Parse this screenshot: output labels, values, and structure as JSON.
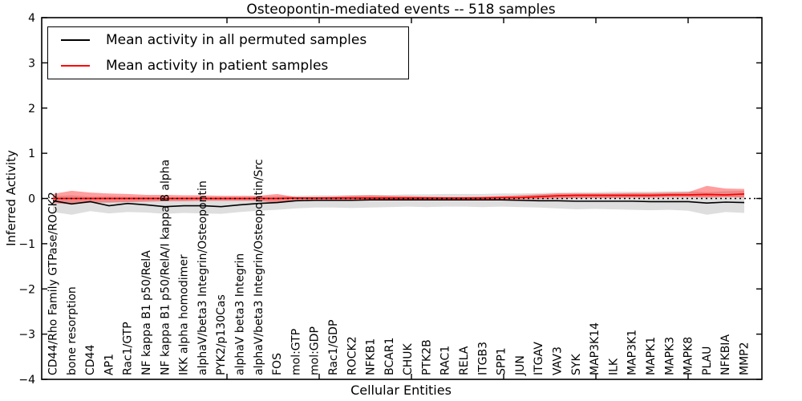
{
  "legend": {
    "position": "upper left",
    "items": [
      {
        "label": "Mean activity in all permuted samples",
        "color": "#000000"
      },
      {
        "label": "Mean activity in patient samples",
        "color": "#ff0000"
      }
    ]
  },
  "colors": {
    "background": "#ffffff",
    "axis": "#000000",
    "permuted_line": "#000000",
    "patient_line": "#ff0000",
    "permuted_band": "rgba(0,0,0,0.13)",
    "patient_band": "rgba(255,0,0,0.38)",
    "zero_line": "#000000"
  },
  "chart_data": {
    "type": "line",
    "title": "Osteopontin-mediated events -- 518 samples",
    "xlabel": "Cellular Entities",
    "ylabel": "Inferred Activity",
    "ylim": [
      -4,
      4
    ],
    "yticks": [
      4,
      3,
      2,
      1,
      0,
      -1,
      -2,
      -3,
      -4
    ],
    "ytick_labels": [
      "4",
      "3",
      "2",
      "1",
      "0",
      "−1",
      "−2",
      "−3",
      "−4"
    ],
    "grid": false,
    "x_tick_labels_rotation": 90,
    "categories": [
      "CD44/Rho Family GTPase/ROCK2",
      "bone resorption",
      "CD44",
      "AP1",
      "Rac1/GTP",
      "NF kappa B1 p50/RelA",
      "NF kappa B1 p50/RelA/I kappa B alpha",
      "IKK alpha homodimer",
      "alphaV/beta3 Integrin/Osteopontin",
      "PYK2/p130Cas",
      "alphaV beta3 Integrin",
      "alphaV/beta3 Integrin/Osteopontin/Src",
      "FOS",
      "mol:GTP",
      "mol:GDP",
      "Rac1/GDP",
      "ROCK2",
      "NFKB1",
      "BCAR1",
      "CHUK",
      "PTK2B",
      "RAC1",
      "RELA",
      "ITGB3",
      "SPP1",
      "JUN",
      "ITGAV",
      "VAV3",
      "SYK",
      "MAP3K14",
      "ILK",
      "MAP3K1",
      "MAPK1",
      "MAPK3",
      "MAPK8",
      "PLAU",
      "NFKBIA",
      "MMP2"
    ],
    "series": [
      {
        "name": "Mean activity in all permuted samples",
        "color": "#000000",
        "values": [
          -0.05,
          -0.12,
          -0.07,
          -0.16,
          -0.11,
          -0.14,
          -0.18,
          -0.16,
          -0.16,
          -0.18,
          -0.14,
          -0.11,
          -0.09,
          -0.05,
          -0.04,
          -0.04,
          -0.04,
          -0.03,
          -0.03,
          -0.03,
          -0.03,
          -0.03,
          -0.03,
          -0.03,
          -0.03,
          -0.04,
          -0.05,
          -0.05,
          -0.06,
          -0.06,
          -0.06,
          -0.06,
          -0.07,
          -0.07,
          -0.07,
          -0.1,
          -0.08,
          -0.09
        ]
      },
      {
        "name": "Mean activity in patient samples",
        "color": "#ff0000",
        "values": [
          0.0,
          0.0,
          0.0,
          0.0,
          0.0,
          0.0,
          0.0,
          0.0,
          0.0,
          0.0,
          0.0,
          0.0,
          0.0,
          0.01,
          0.01,
          0.01,
          0.01,
          0.01,
          0.01,
          0.01,
          0.01,
          0.01,
          0.01,
          0.01,
          0.02,
          0.02,
          0.04,
          0.06,
          0.07,
          0.07,
          0.07,
          0.07,
          0.07,
          0.08,
          0.08,
          0.09,
          0.08,
          0.1
        ]
      }
    ],
    "bands": [
      {
        "name": "permuted-band",
        "series": "Mean activity in all permuted samples",
        "color": "rgba(0,0,0,0.13)",
        "upper": [
          0.05,
          0.07,
          0.04,
          0.05,
          0.04,
          0.04,
          0.03,
          0.03,
          0.03,
          0.03,
          0.03,
          0.04,
          0.05,
          0.06,
          0.07,
          0.07,
          0.08,
          0.08,
          0.08,
          0.09,
          0.09,
          0.1,
          0.1,
          0.1,
          0.11,
          0.11,
          0.12,
          0.13,
          0.14,
          0.14,
          0.15,
          0.15,
          0.15,
          0.16,
          0.16,
          0.14,
          0.16,
          0.17
        ],
        "lower": [
          -0.3,
          -0.36,
          -0.28,
          -0.33,
          -0.3,
          -0.31,
          -0.34,
          -0.32,
          -0.33,
          -0.34,
          -0.3,
          -0.27,
          -0.25,
          -0.22,
          -0.2,
          -0.2,
          -0.21,
          -0.2,
          -0.19,
          -0.18,
          -0.19,
          -0.18,
          -0.18,
          -0.19,
          -0.18,
          -0.19,
          -0.2,
          -0.22,
          -0.24,
          -0.23,
          -0.24,
          -0.25,
          -0.26,
          -0.25,
          -0.27,
          -0.36,
          -0.3,
          -0.32
        ]
      },
      {
        "name": "patient-band",
        "series": "Mean activity in patient samples",
        "color": "rgba(255,0,0,0.38)",
        "upper": [
          0.1,
          0.17,
          0.13,
          0.11,
          0.1,
          0.08,
          0.08,
          0.07,
          0.07,
          0.06,
          0.06,
          0.06,
          0.1,
          0.03,
          0.03,
          0.04,
          0.06,
          0.07,
          0.06,
          0.05,
          0.04,
          0.03,
          0.03,
          0.04,
          0.05,
          0.07,
          0.09,
          0.11,
          0.11,
          0.11,
          0.11,
          0.12,
          0.12,
          0.13,
          0.14,
          0.28,
          0.22,
          0.21
        ],
        "lower": [
          -0.1,
          -0.13,
          -0.09,
          -0.09,
          -0.08,
          -0.07,
          -0.06,
          -0.06,
          -0.05,
          -0.05,
          -0.05,
          -0.05,
          -0.1,
          -0.03,
          -0.03,
          -0.03,
          -0.04,
          -0.04,
          -0.03,
          -0.03,
          -0.02,
          -0.02,
          -0.02,
          -0.02,
          -0.02,
          -0.02,
          -0.01,
          0.0,
          0.01,
          0.01,
          0.01,
          0.02,
          0.02,
          0.03,
          0.03,
          0.02,
          0.03,
          0.02
        ]
      }
    ],
    "zero_line": {
      "value": 0,
      "style": "dotted",
      "color": "#000000"
    }
  }
}
